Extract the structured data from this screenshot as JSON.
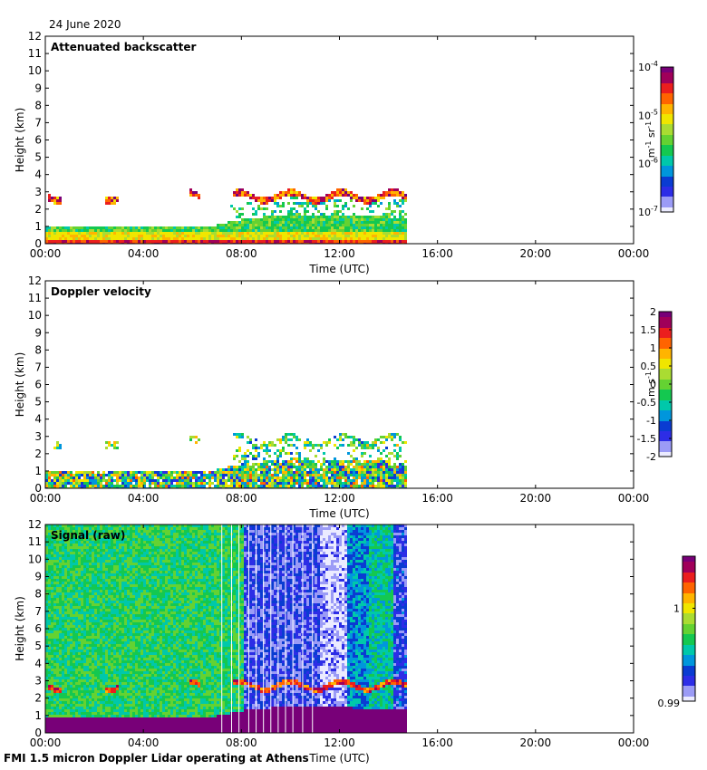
{
  "date_label": "24 June 2020",
  "footer": "FMI 1.5 micron Doppler Lidar operating at Athens",
  "colormap": [
    "#ebebff",
    "#9b9bf6",
    "#2d2de6",
    "#0a3cd2",
    "#0096dc",
    "#00c8aa",
    "#14c850",
    "#64d232",
    "#aadc32",
    "#f0e600",
    "#ffb400",
    "#ff6400",
    "#eb1e1e",
    "#a0005a",
    "#780078"
  ],
  "chart_data": [
    {
      "type": "heatmap",
      "title": "Attenuated backscatter",
      "xlabel": "Time (UTC)",
      "ylabel": "Height (km)",
      "xticks": [
        "00:00",
        "04:00",
        "08:00",
        "12:00",
        "16:00",
        "20:00",
        "00:00"
      ],
      "xlim_hours": [
        0,
        24
      ],
      "yticks": [
        "0",
        "1",
        "2",
        "3",
        "4",
        "5",
        "6",
        "7",
        "8",
        "9",
        "10",
        "11",
        "12"
      ],
      "ylim_km": [
        0,
        12
      ],
      "data_end_hour": 14.7,
      "boundary_layer_top_km": [
        {
          "hour": 0,
          "km": 1.05
        },
        {
          "hour": 4,
          "km": 1.0
        },
        {
          "hour": 6.8,
          "km": 1.1
        },
        {
          "hour": 8,
          "km": 1.5
        },
        {
          "hour": 10,
          "km": 1.8
        },
        {
          "hour": 12,
          "km": 1.7
        },
        {
          "hour": 14.7,
          "km": 1.6
        }
      ],
      "cloud_layer_km": 2.8,
      "colorbar": {
        "label": "m-1 sr-1",
        "tick_labels": [
          "10",
          "10",
          "10",
          "10"
        ],
        "tick_exponents": [
          "-4",
          "-5",
          "-6",
          "-7"
        ],
        "log_min": -7,
        "log_max": -4
      }
    },
    {
      "type": "heatmap",
      "title": "Doppler velocity",
      "xlabel": "Time (UTC)",
      "ylabel": "Height (km)",
      "xticks": [
        "00:00",
        "04:00",
        "08:00",
        "12:00",
        "16:00",
        "20:00",
        "00:00"
      ],
      "xlim_hours": [
        0,
        24
      ],
      "yticks": [
        "0",
        "1",
        "2",
        "3",
        "4",
        "5",
        "6",
        "7",
        "8",
        "9",
        "10",
        "11",
        "12"
      ],
      "ylim_km": [
        0,
        12
      ],
      "data_end_hour": 14.7,
      "colorbar": {
        "label": "m s-1",
        "tick_labels": [
          "2",
          "1.5",
          "1",
          "0.5",
          "0",
          "-0.5",
          "-1",
          "-1.5",
          "-2"
        ],
        "vmin": -2,
        "vmax": 2
      }
    },
    {
      "type": "heatmap",
      "title": "Signal (raw)",
      "xlabel": "Time (UTC)",
      "ylabel": "Height (km)",
      "xticks": [
        "00:00",
        "04:00",
        "08:00",
        "12:00",
        "16:00",
        "20:00",
        "00:00"
      ],
      "xlim_hours": [
        0,
        24
      ],
      "yticks": [
        "0",
        "1",
        "2",
        "3",
        "4",
        "5",
        "6",
        "7",
        "8",
        "9",
        "10",
        "11",
        "12"
      ],
      "ylim_km": [
        0,
        12
      ],
      "data_end_hour": 14.7,
      "colorbar": {
        "label": "",
        "tick_labels": [
          "1",
          "0.99"
        ],
        "vmin": 0.99,
        "vmax": 1.0056
      }
    }
  ]
}
